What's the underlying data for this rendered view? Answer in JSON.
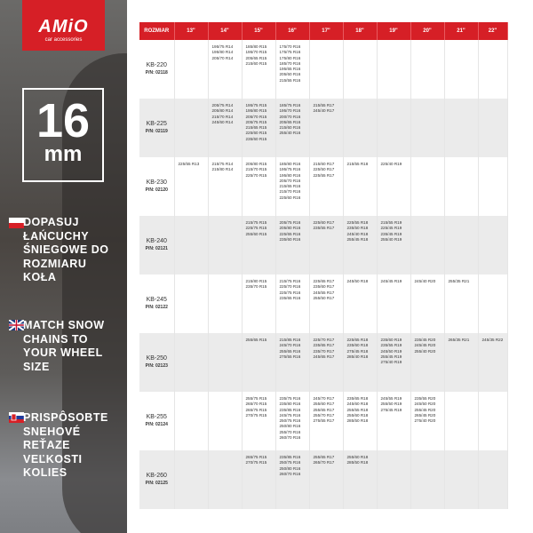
{
  "brand": {
    "name": "AMiO",
    "tagline": "car accessories",
    "color": "#d61f26"
  },
  "badge": {
    "value": "16",
    "unit": "mm"
  },
  "messages": [
    {
      "lang": "pl",
      "text": "DOPASUJ ŁAŃCUCHY ŚNIEGOWE DO ROZMIARU KOŁA"
    },
    {
      "lang": "en",
      "text": "MATCH SNOW CHAINS TO YOUR WHEEL SIZE"
    },
    {
      "lang": "sk",
      "text": "PRISPÔSOBTE SNEHOVÉ REŤAZE VEĽKOSTI KOLIES"
    }
  ],
  "table": {
    "headers": [
      "ROZMIAR",
      "13\"",
      "14\"",
      "15\"",
      "16\"",
      "17\"",
      "18\"",
      "19\"",
      "20\"",
      "21\"",
      "22\""
    ],
    "rows": [
      {
        "model": "KB-220",
        "pn": "P/N: 02118",
        "cells": [
          [],
          [
            "195/75 R14",
            "195/80 R14",
            "205/70 R14"
          ],
          [
            "185/80 R15",
            "195/70 R15",
            "205/65 R15",
            "215/60 R15"
          ],
          [
            "175/70 R16",
            "175/75 R16",
            "175/80 R16",
            "185/70 R16",
            "195/65 R16",
            "205/60 R16",
            "215/55 R16"
          ],
          [],
          [],
          [],
          [],
          [],
          []
        ]
      },
      {
        "model": "KB-225",
        "pn": "P/N: 02119",
        "cells": [
          [],
          [
            "205/75 R14",
            "205/80 R14",
            "215/70 R14",
            "245/60 R14"
          ],
          [
            "195/75 R15",
            "195/80 R15",
            "205/70 R15",
            "205/75 R15",
            "215/65 R15",
            "225/60 R15",
            "235/60 R15"
          ],
          [
            "185/75 R16",
            "195/70 R16",
            "200/70 R16",
            "205/65 R16",
            "215/60 R16",
            "255/40 R16"
          ],
          [
            "215/55 R17",
            "245/40 R17"
          ],
          [],
          [],
          [],
          [],
          []
        ]
      },
      {
        "model": "KB-230",
        "pn": "P/N: 02120",
        "cells": [
          [
            "225/55 R13"
          ],
          [
            "215/75 R14",
            "215/80 R14"
          ],
          [
            "205/80 R15",
            "215/70 R15",
            "225/70 R15"
          ],
          [
            "185/80 R16",
            "195/75 R16",
            "195/80 R16",
            "205/70 R16",
            "215/65 R16",
            "215/70 R16",
            "225/60 R16"
          ],
          [
            "215/60 R17",
            "225/50 R17",
            "225/55 R17"
          ],
          [
            "215/55 R18"
          ],
          [
            "225/40 R19"
          ],
          [],
          [],
          []
        ]
      },
      {
        "model": "KB-240",
        "pn": "P/N: 02121",
        "cells": [
          [],
          [],
          [
            "215/75 R15",
            "225/75 R15",
            "255/60 R15"
          ],
          [
            "205/75 R16",
            "205/80 R16",
            "225/65 R16",
            "235/60 R16"
          ],
          [
            "225/60 R17",
            "235/55 R17"
          ],
          [
            "225/55 R18",
            "235/50 R18",
            "245/40 R18",
            "255/45 R18"
          ],
          [
            "215/55 R19",
            "225/45 R19",
            "235/45 R19",
            "255/40 R19"
          ],
          [],
          [],
          []
        ]
      },
      {
        "model": "KB-245",
        "pn": "P/N: 02122",
        "cells": [
          [],
          [],
          [
            "215/80 R15",
            "235/70 R15"
          ],
          [
            "215/75 R16",
            "225/70 R16",
            "225/75 R16",
            "235/65 R16"
          ],
          [
            "225/65 R17",
            "235/60 R17",
            "245/55 R17",
            "255/50 R17"
          ],
          [
            "245/50 R18"
          ],
          [
            "245/45 R19"
          ],
          [
            "245/40 R20"
          ],
          [
            "255/35 R21"
          ],
          []
        ]
      },
      {
        "model": "KB-250",
        "pn": "P/N: 02123",
        "cells": [
          [],
          [],
          [
            "255/65 R15"
          ],
          [
            "215/85 R16",
            "245/70 R16",
            "255/65 R16",
            "275/55 R16"
          ],
          [
            "225/70 R17",
            "235/65 R17",
            "235/70 R17",
            "245/65 R17"
          ],
          [
            "225/65 R18",
            "235/60 R18",
            "275/45 R18",
            "285/40 R18"
          ],
          [
            "235/60 R19",
            "235/55 R19",
            "245/50 R19",
            "255/45 R19",
            "275/40 R19"
          ],
          [
            "235/45 R20",
            "245/45 R20",
            "255/40 R20"
          ],
          [
            "265/35 R21"
          ],
          [
            "245/35 R22"
          ]
        ]
      },
      {
        "model": "KB-255",
        "pn": "P/N: 02124",
        "cells": [
          [],
          [],
          [
            "255/75 R15",
            "265/70 R15",
            "265/75 R15",
            "270/75 R15"
          ],
          [
            "235/75 R16",
            "235/80 R16",
            "235/85 R16",
            "245/75 R16",
            "250/75 R16",
            "250/80 R16",
            "255/70 R16",
            "260/70 R16"
          ],
          [
            "245/70 R17",
            "255/60 R17",
            "255/65 R17",
            "255/70 R17",
            "275/55 R17"
          ],
          [
            "235/65 R18",
            "245/60 R18",
            "255/55 R18",
            "255/60 R18",
            "285/50 R18"
          ],
          [
            "245/55 R19",
            "255/50 R19",
            "275/45 R19"
          ],
          [
            "235/55 R20",
            "245/50 R20",
            "255/45 R20",
            "265/45 R20",
            "275/40 R20"
          ],
          [],
          []
        ]
      },
      {
        "model": "KB-260",
        "pn": "P/N: 02125",
        "cells": [
          [],
          [],
          [
            "265/75 R15",
            "270/75 R15"
          ],
          [
            "235/85 R16",
            "250/75 R16",
            "250/80 R16",
            "260/70 R16"
          ],
          [
            "255/65 R17",
            "265/70 R17"
          ],
          [
            "255/60 R18",
            "285/50 R18"
          ],
          [],
          [],
          [],
          []
        ]
      }
    ]
  }
}
